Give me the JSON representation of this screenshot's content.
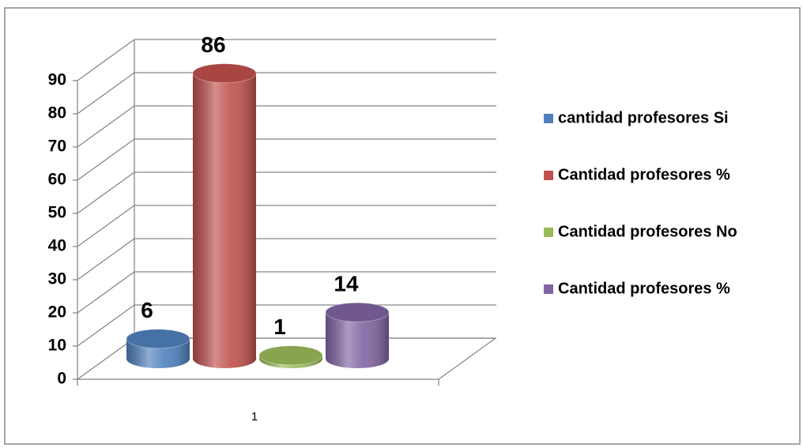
{
  "chart_data": {
    "type": "bar3d",
    "categories": [
      "1"
    ],
    "series": [
      {
        "name": "cantidad profesores Si",
        "color": "#4f81bd",
        "values": [
          6
        ]
      },
      {
        "name": "Cantidad profesores %",
        "color": "#c0504d",
        "values": [
          86
        ]
      },
      {
        "name": "Cantidad profesores No",
        "color": "#9bbb59",
        "values": [
          1
        ]
      },
      {
        "name": "Cantidad profesores %",
        "color": "#8064a2",
        "values": [
          14
        ]
      }
    ],
    "ylim": [
      0,
      90
    ],
    "yticks": [
      0,
      10,
      20,
      30,
      40,
      50,
      60,
      70,
      80,
      90
    ],
    "grid": true,
    "legend": "right"
  }
}
